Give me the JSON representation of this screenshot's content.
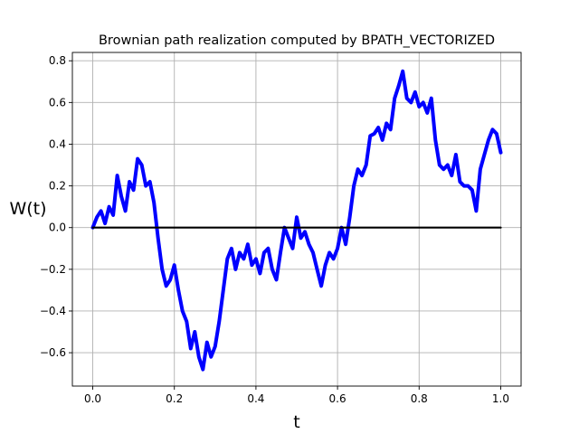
{
  "chart_data": {
    "type": "line",
    "title": "Brownian path realization computed by BPATH_VECTORIZED",
    "xlabel": "t",
    "ylabel": "W(t)",
    "xlim": [
      -0.05,
      1.05
    ],
    "ylim": [
      -0.76,
      0.84
    ],
    "xticks": [
      0.0,
      0.2,
      0.4,
      0.6,
      0.8,
      1.0
    ],
    "xtick_labels": [
      "0.0",
      "0.2",
      "0.4",
      "0.6",
      "0.8",
      "1.0"
    ],
    "yticks": [
      -0.6,
      -0.4,
      -0.2,
      0.0,
      0.2,
      0.4,
      0.6,
      0.8
    ],
    "ytick_labels": [
      "−0.6",
      "−0.4",
      "−0.2",
      "0.0",
      "0.2",
      "0.4",
      "0.6",
      "0.8"
    ],
    "grid": true,
    "series": [
      {
        "color": "#0000ff",
        "x": [
          0.0,
          0.01,
          0.02,
          0.03,
          0.04,
          0.05,
          0.06,
          0.07,
          0.08,
          0.09,
          0.1,
          0.11,
          0.12,
          0.13,
          0.14,
          0.15,
          0.16,
          0.17,
          0.18,
          0.19,
          0.2,
          0.21,
          0.22,
          0.23,
          0.24,
          0.25,
          0.26,
          0.27,
          0.28,
          0.29,
          0.3,
          0.31,
          0.32,
          0.33,
          0.34,
          0.35,
          0.36,
          0.37,
          0.38,
          0.39,
          0.4,
          0.41,
          0.42,
          0.43,
          0.44,
          0.45,
          0.46,
          0.47,
          0.48,
          0.49,
          0.5,
          0.51,
          0.52,
          0.53,
          0.54,
          0.55,
          0.56,
          0.57,
          0.58,
          0.59,
          0.6,
          0.61,
          0.62,
          0.63,
          0.64,
          0.65,
          0.66,
          0.67,
          0.68,
          0.69,
          0.7,
          0.71,
          0.72,
          0.73,
          0.74,
          0.75,
          0.76,
          0.77,
          0.78,
          0.79,
          0.8,
          0.81,
          0.82,
          0.83,
          0.84,
          0.85,
          0.86,
          0.87,
          0.88,
          0.89,
          0.9,
          0.91,
          0.92,
          0.93,
          0.94,
          0.95,
          0.96,
          0.97,
          0.98,
          0.99,
          1.0
        ],
        "y": [
          0.0,
          0.05,
          0.08,
          0.02,
          0.1,
          0.06,
          0.25,
          0.15,
          0.08,
          0.22,
          0.18,
          0.33,
          0.3,
          0.2,
          0.22,
          0.12,
          -0.05,
          -0.2,
          -0.28,
          -0.25,
          -0.18,
          -0.3,
          -0.4,
          -0.45,
          -0.58,
          -0.5,
          -0.62,
          -0.68,
          -0.55,
          -0.62,
          -0.57,
          -0.45,
          -0.3,
          -0.15,
          -0.1,
          -0.2,
          -0.12,
          -0.15,
          -0.08,
          -0.18,
          -0.15,
          -0.22,
          -0.12,
          -0.1,
          -0.2,
          -0.25,
          -0.12,
          0.0,
          -0.05,
          -0.1,
          0.05,
          -0.05,
          -0.02,
          -0.08,
          -0.12,
          -0.2,
          -0.28,
          -0.18,
          -0.12,
          -0.15,
          -0.1,
          0.0,
          -0.08,
          0.05,
          0.2,
          0.28,
          0.25,
          0.3,
          0.44,
          0.45,
          0.48,
          0.42,
          0.5,
          0.47,
          0.62,
          0.68,
          0.75,
          0.62,
          0.6,
          0.65,
          0.58,
          0.6,
          0.55,
          0.62,
          0.42,
          0.3,
          0.28,
          0.3,
          0.25,
          0.35,
          0.22,
          0.2,
          0.2,
          0.18,
          0.08,
          0.28,
          0.35,
          0.42,
          0.47,
          0.45,
          0.36
        ]
      },
      {
        "color": "#000000",
        "x": [
          0.0,
          1.0
        ],
        "y": [
          0.0,
          0.0
        ]
      }
    ]
  }
}
